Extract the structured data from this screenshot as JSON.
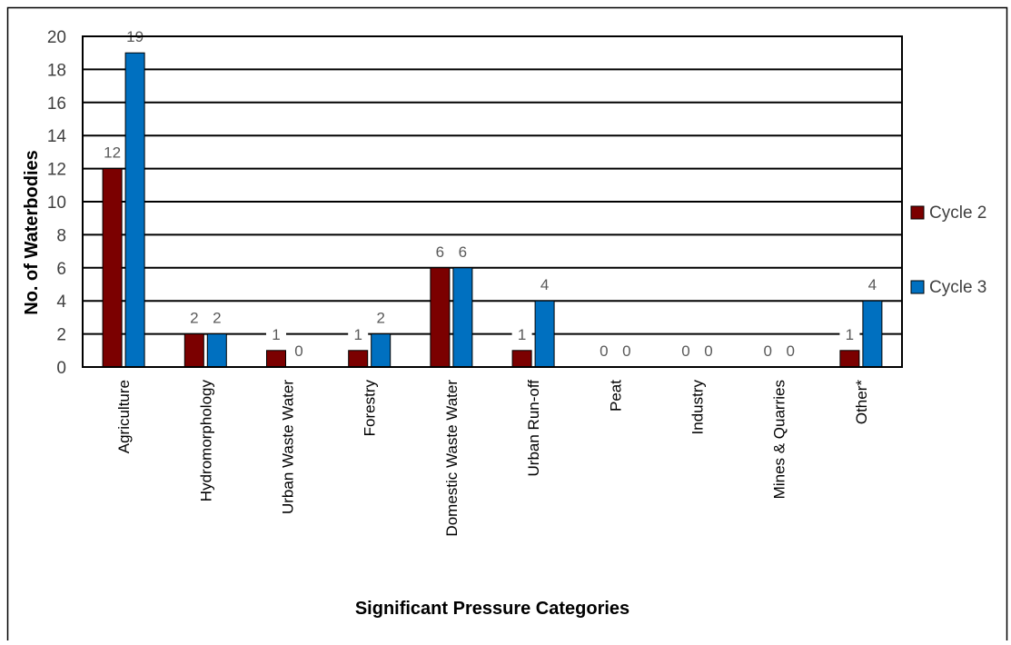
{
  "chart_data": {
    "type": "bar",
    "title": "",
    "xlabel": "Significant Pressure Categories",
    "ylabel": "No. of Waterbodies",
    "ylim": [
      0,
      20
    ],
    "yticks": [
      0,
      2,
      4,
      6,
      8,
      10,
      12,
      14,
      16,
      18,
      20
    ],
    "grid": true,
    "legend_position": "right",
    "categories": [
      "Agriculture",
      "Hydromorphology",
      "Urban Waste Water",
      "Forestry",
      "Domestic Waste Water",
      "Urban Run-off",
      "Peat",
      "Industry",
      "Mines & Quarries",
      "Other*"
    ],
    "series": [
      {
        "name": "Cycle 2",
        "color": "#7B0000",
        "values": [
          12,
          2,
          1,
          1,
          6,
          1,
          0,
          0,
          0,
          1
        ]
      },
      {
        "name": "Cycle 3",
        "color": "#0070C0",
        "values": [
          19,
          2,
          0,
          2,
          6,
          4,
          0,
          0,
          0,
          4
        ]
      }
    ]
  }
}
